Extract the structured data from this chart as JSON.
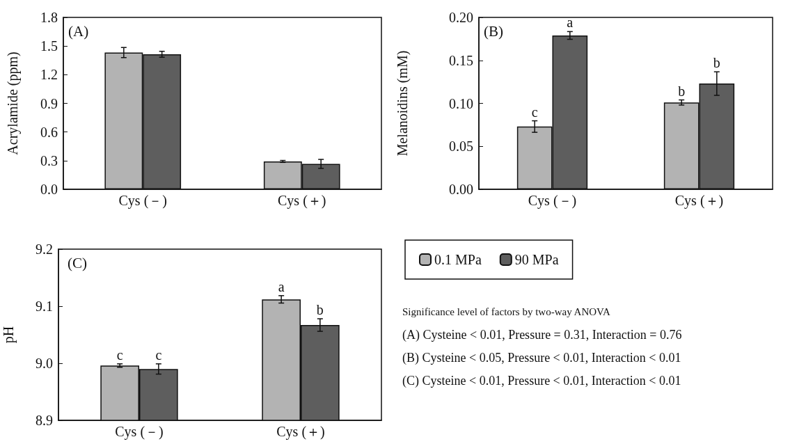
{
  "chart_data": [
    {
      "type": "bar",
      "title": "(A)",
      "ylabel": "Acrylamide (ppm)",
      "categories": [
        "Cys (－)",
        "Cys (＋)"
      ],
      "ylim": [
        0,
        1.8
      ],
      "yticks": [
        {
          "value": 0,
          "label": "0.0"
        },
        0.3,
        0.6,
        0.9,
        1.2,
        1.5,
        1.8
      ],
      "grid": false,
      "legend": false,
      "series": [
        {
          "color": "#b3b3b3",
          "values": [
            1.432,
            0.292
          ],
          "errors": [
            0.053,
            0.01
          ]
        },
        {
          "color": "#5e5e5e",
          "values": [
            1.414,
            0.266
          ],
          "errors": [
            0.031,
            0.047
          ]
        }
      ]
    },
    {
      "type": "bar",
      "title": "(B)",
      "ylabel": "Melanoidins (mM)",
      "categories": [
        "Cys (－)",
        "Cys (＋)"
      ],
      "ylim": [
        0,
        0.2
      ],
      "yticks": [
        {
          "value": 0,
          "label": "0.00"
        },
        0.05,
        {
          "value": 0.1,
          "label": "0.10"
        },
        0.15,
        {
          "value": 0.2,
          "label": "0.20"
        }
      ],
      "grid": false,
      "legend": false,
      "series": [
        {
          "color": "#b3b3b3",
          "values": [
            0.073,
            0.101
          ],
          "errors": [
            0.0067,
            0.003
          ],
          "value_labels": [
            "c",
            "b"
          ]
        },
        {
          "color": "#5e5e5e",
          "values": [
            0.179,
            0.123
          ],
          "errors": [
            0.0045,
            0.0137
          ],
          "value_labels": [
            "a",
            "b"
          ]
        }
      ]
    },
    {
      "type": "bar",
      "title": "(C)",
      "ylabel": "pH",
      "categories": [
        "Cys (－)",
        "Cys (＋)"
      ],
      "ylim": [
        8.9,
        9.2
      ],
      "yticks": [
        8.9,
        {
          "value": 9,
          "label": "9.0"
        },
        9.1,
        9.2
      ],
      "grid": false,
      "legend": "right",
      "series": [
        {
          "name": "0.1 MPa",
          "color": "#b3b3b3",
          "values": [
            8.996,
            9.112
          ],
          "errors": [
            0.003,
            0.0065
          ],
          "value_labels": [
            "c",
            "a"
          ]
        },
        {
          "name": "90 MPa",
          "color": "#5e5e5e",
          "values": [
            8.99,
            9.067
          ],
          "errors": [
            0.009,
            0.011
          ],
          "value_labels": [
            "c",
            "b"
          ]
        }
      ]
    },
    {
      "type": "other",
      "title": "Significance level of factors by two-way ANOVA",
      "annotations": [
        "(A) Cysteine < 0.01, Pressure = 0.31, Interaction = 0.76",
        "(B) Cysteine < 0.05, Pressure < 0.01, Interaction < 0.01",
        "(C) Cysteine < 0.01, Pressure < 0.01, Interaction < 0.01"
      ]
    }
  ]
}
